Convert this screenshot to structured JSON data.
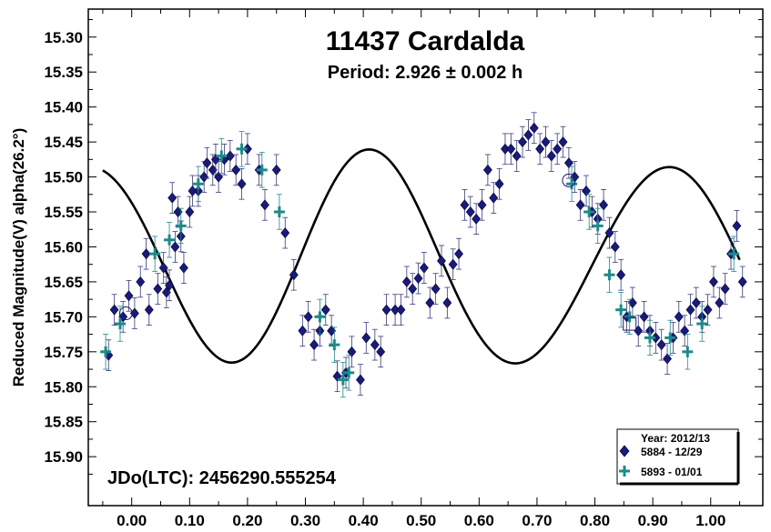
{
  "chart_data": {
    "type": "scatter",
    "title": "11437 Cardalda",
    "subtitle": "Period: 2.926 ± 0.002 h",
    "ylabel": "Reduced Magnitude(V) alpha(26.2°)",
    "xlabel": "",
    "xlim": [
      -0.075,
      1.09
    ],
    "ylim": [
      15.97,
      15.26
    ],
    "x_ticks": [
      0.0,
      0.1,
      0.2,
      0.3,
      0.4,
      0.5,
      0.6,
      0.7,
      0.8,
      0.9,
      1.0
    ],
    "x_tick_labels": [
      "0.00",
      "0.10",
      "0.20",
      "0.30",
      "0.40",
      "0.50",
      "0.60",
      "0.70",
      "0.80",
      "0.90",
      "1.00"
    ],
    "y_ticks": [
      15.3,
      15.35,
      15.4,
      15.45,
      15.5,
      15.55,
      15.6,
      15.65,
      15.7,
      15.75,
      15.8,
      15.85,
      15.9
    ],
    "y_tick_labels": [
      "15.30",
      "15.35",
      "15.40",
      "15.45",
      "15.50",
      "15.55",
      "15.60",
      "15.65",
      "15.70",
      "15.75",
      "15.80",
      "15.85",
      "15.90"
    ],
    "epoch_label": "JDo(LTC): 2456290.555254",
    "legend": {
      "title": "Year: 2012/13",
      "entries": [
        "5884 - 12/29",
        "5893 - 01/01"
      ],
      "position": "bottom-right"
    },
    "colors": {
      "series1": "#1a1a7a",
      "series2": "#1e8a8a",
      "fit": "#000000"
    },
    "fit_curve": {
      "mean": 15.62,
      "terms": [
        [
          1,
          0.0,
          -0.01
        ],
        [
          2,
          -0.075,
          0.125
        ],
        [
          3,
          -0.008,
          -0.008
        ]
      ]
    },
    "series": [
      {
        "name": "5884 - 12/29",
        "marker": "diamond",
        "error": 0.022,
        "points": [
          [
            -0.04,
            15.755
          ],
          [
            -0.03,
            15.69
          ],
          [
            -0.015,
            15.7
          ],
          [
            -0.005,
            15.67
          ],
          [
            0.005,
            15.695
          ],
          [
            0.015,
            15.65
          ],
          [
            0.025,
            15.61
          ],
          [
            0.03,
            15.69
          ],
          [
            0.045,
            15.66
          ],
          [
            0.055,
            15.63
          ],
          [
            0.06,
            15.665
          ],
          [
            0.065,
            15.655
          ],
          [
            0.07,
            15.53
          ],
          [
            0.075,
            15.6
          ],
          [
            0.08,
            15.55
          ],
          [
            0.085,
            15.585
          ],
          [
            0.09,
            15.63
          ],
          [
            0.1,
            15.55
          ],
          [
            0.105,
            15.52
          ],
          [
            0.115,
            15.52
          ],
          [
            0.125,
            15.5
          ],
          [
            0.13,
            15.48
          ],
          [
            0.14,
            15.49
          ],
          [
            0.145,
            15.475
          ],
          [
            0.15,
            15.5
          ],
          [
            0.16,
            15.475
          ],
          [
            0.17,
            15.47
          ],
          [
            0.18,
            15.49
          ],
          [
            0.19,
            15.51
          ],
          [
            0.2,
            15.46
          ],
          [
            0.22,
            15.49
          ],
          [
            0.23,
            15.54
          ],
          [
            0.25,
            15.49
          ],
          [
            0.265,
            15.58
          ],
          [
            0.28,
            15.64
          ],
          [
            0.295,
            15.72
          ],
          [
            0.305,
            15.7
          ],
          [
            0.315,
            15.74
          ],
          [
            0.325,
            15.72
          ],
          [
            0.335,
            15.69
          ],
          [
            0.345,
            15.72
          ],
          [
            0.355,
            15.785
          ],
          [
            0.37,
            15.78
          ],
          [
            0.38,
            15.75
          ],
          [
            0.395,
            15.79
          ],
          [
            0.405,
            15.73
          ],
          [
            0.42,
            15.74
          ],
          [
            0.43,
            15.75
          ],
          [
            0.44,
            15.69
          ],
          [
            0.455,
            15.69
          ],
          [
            0.465,
            15.69
          ],
          [
            0.475,
            15.65
          ],
          [
            0.485,
            15.66
          ],
          [
            0.495,
            15.645
          ],
          [
            0.505,
            15.63
          ],
          [
            0.515,
            15.68
          ],
          [
            0.525,
            15.66
          ],
          [
            0.535,
            15.62
          ],
          [
            0.545,
            15.68
          ],
          [
            0.555,
            15.625
          ],
          [
            0.565,
            15.61
          ],
          [
            0.575,
            15.54
          ],
          [
            0.585,
            15.55
          ],
          [
            0.595,
            15.56
          ],
          [
            0.605,
            15.54
          ],
          [
            0.615,
            15.49
          ],
          [
            0.625,
            15.53
          ],
          [
            0.635,
            15.51
          ],
          [
            0.645,
            15.46
          ],
          [
            0.655,
            15.46
          ],
          [
            0.665,
            15.47
          ],
          [
            0.675,
            15.45
          ],
          [
            0.685,
            15.44
          ],
          [
            0.695,
            15.43
          ],
          [
            0.705,
            15.46
          ],
          [
            0.715,
            15.45
          ],
          [
            0.725,
            15.47
          ],
          [
            0.735,
            15.46
          ],
          [
            0.745,
            15.45
          ],
          [
            0.755,
            15.48
          ],
          [
            0.765,
            15.5
          ],
          [
            0.775,
            15.54
          ],
          [
            0.785,
            15.52
          ],
          [
            0.795,
            15.55
          ],
          [
            0.805,
            15.56
          ],
          [
            0.815,
            15.54
          ],
          [
            0.825,
            15.58
          ],
          [
            0.835,
            15.6
          ],
          [
            0.845,
            15.64
          ],
          [
            0.855,
            15.7
          ],
          [
            0.865,
            15.68
          ],
          [
            0.875,
            15.72
          ],
          [
            0.885,
            15.7
          ],
          [
            0.895,
            15.72
          ],
          [
            0.905,
            15.73
          ],
          [
            0.915,
            15.74
          ],
          [
            0.925,
            15.76
          ],
          [
            0.935,
            15.73
          ],
          [
            0.945,
            15.7
          ],
          [
            0.955,
            15.72
          ],
          [
            0.965,
            15.69
          ],
          [
            0.975,
            15.68
          ],
          [
            0.985,
            15.7
          ],
          [
            0.995,
            15.69
          ],
          [
            1.005,
            15.65
          ],
          [
            1.015,
            15.68
          ],
          [
            1.025,
            15.66
          ],
          [
            1.035,
            15.61
          ],
          [
            1.045,
            15.57
          ],
          [
            1.055,
            15.65
          ]
        ]
      },
      {
        "name": "5893 - 01/01",
        "marker": "plus",
        "error": 0.025,
        "points": [
          [
            -0.045,
            15.75
          ],
          [
            -0.02,
            15.71
          ],
          [
            0.04,
            15.61
          ],
          [
            0.065,
            15.59
          ],
          [
            0.085,
            15.57
          ],
          [
            0.115,
            15.51
          ],
          [
            0.155,
            15.47
          ],
          [
            0.19,
            15.46
          ],
          [
            0.225,
            15.49
          ],
          [
            0.255,
            15.55
          ],
          [
            0.325,
            15.7
          ],
          [
            0.35,
            15.74
          ],
          [
            0.365,
            15.79
          ],
          [
            0.375,
            15.78
          ],
          [
            0.76,
            15.51
          ],
          [
            0.79,
            15.55
          ],
          [
            0.805,
            15.57
          ],
          [
            0.825,
            15.64
          ],
          [
            0.845,
            15.69
          ],
          [
            0.86,
            15.7
          ],
          [
            0.895,
            15.73
          ],
          [
            0.93,
            15.73
          ],
          [
            0.96,
            15.75
          ],
          [
            0.985,
            15.71
          ],
          [
            1.04,
            15.61
          ]
        ]
      }
    ],
    "open_markers": [
      {
        "shape": "circle",
        "x": -0.01,
        "y": 15.695
      },
      {
        "shape": "square",
        "x": 0.86,
        "y": 15.71
      },
      {
        "shape": "circle",
        "x": 0.755,
        "y": 15.505
      }
    ]
  }
}
